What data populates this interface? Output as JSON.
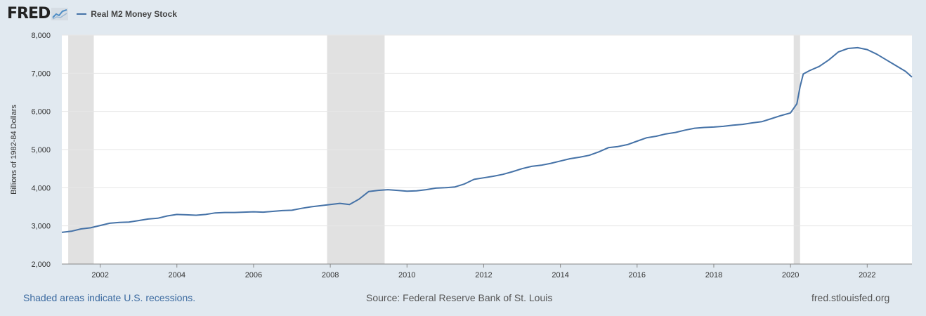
{
  "header": {
    "logo_text": "FRED",
    "legend_label": "Real M2 Money Stock"
  },
  "footer": {
    "recession_note": "Shaded areas indicate U.S. recessions.",
    "source": "Source: Federal Reserve Bank of St. Louis",
    "url": "fred.stlouisfed.org"
  },
  "colors": {
    "series": "#4572a7",
    "page_background": "#e1e9f0",
    "plot_background": "#ffffff",
    "recession_shade": "#e1e1e1",
    "grid": "#e6e6e6",
    "note_text": "#3b6aa0"
  },
  "chart_data": {
    "type": "line",
    "title": "",
    "xlabel": "",
    "ylabel": "Billions of 1982-84 Dollars",
    "ylim": [
      2000,
      8000
    ],
    "xlim": [
      "2001-01",
      "2023-03"
    ],
    "yticks": [
      2000,
      3000,
      4000,
      5000,
      6000,
      7000,
      8000
    ],
    "ytick_labels": [
      "2,000",
      "3,000",
      "4,000",
      "5,000",
      "6,000",
      "7,000",
      "8,000"
    ],
    "xticks": [
      "2002",
      "2004",
      "2006",
      "2008",
      "2010",
      "2012",
      "2014",
      "2016",
      "2018",
      "2020",
      "2022"
    ],
    "grid": "horizontal",
    "legend_position": "top-left",
    "recessions": [
      {
        "start": "2001-03",
        "end": "2001-11"
      },
      {
        "start": "2007-12",
        "end": "2009-06"
      },
      {
        "start": "2020-02",
        "end": "2020-04"
      }
    ],
    "series": [
      {
        "name": "Real M2 Money Stock",
        "points": [
          [
            "2001-01",
            2830
          ],
          [
            "2001-04",
            2860
          ],
          [
            "2001-07",
            2920
          ],
          [
            "2001-10",
            2950
          ],
          [
            "2002-01",
            3010
          ],
          [
            "2002-04",
            3070
          ],
          [
            "2002-07",
            3090
          ],
          [
            "2002-10",
            3100
          ],
          [
            "2003-01",
            3140
          ],
          [
            "2003-04",
            3180
          ],
          [
            "2003-07",
            3200
          ],
          [
            "2003-10",
            3260
          ],
          [
            "2004-01",
            3300
          ],
          [
            "2004-04",
            3290
          ],
          [
            "2004-07",
            3280
          ],
          [
            "2004-10",
            3300
          ],
          [
            "2005-01",
            3340
          ],
          [
            "2005-04",
            3350
          ],
          [
            "2005-07",
            3350
          ],
          [
            "2005-10",
            3360
          ],
          [
            "2006-01",
            3370
          ],
          [
            "2006-04",
            3360
          ],
          [
            "2006-07",
            3380
          ],
          [
            "2006-10",
            3400
          ],
          [
            "2007-01",
            3410
          ],
          [
            "2007-04",
            3460
          ],
          [
            "2007-07",
            3500
          ],
          [
            "2007-10",
            3530
          ],
          [
            "2008-01",
            3560
          ],
          [
            "2008-04",
            3590
          ],
          [
            "2008-07",
            3560
          ],
          [
            "2008-10",
            3700
          ],
          [
            "2009-01",
            3900
          ],
          [
            "2009-04",
            3930
          ],
          [
            "2009-07",
            3950
          ],
          [
            "2009-10",
            3930
          ],
          [
            "2010-01",
            3910
          ],
          [
            "2010-04",
            3920
          ],
          [
            "2010-07",
            3950
          ],
          [
            "2010-10",
            3990
          ],
          [
            "2011-01",
            4000
          ],
          [
            "2011-04",
            4020
          ],
          [
            "2011-07",
            4100
          ],
          [
            "2011-10",
            4220
          ],
          [
            "2012-01",
            4260
          ],
          [
            "2012-04",
            4300
          ],
          [
            "2012-07",
            4350
          ],
          [
            "2012-10",
            4420
          ],
          [
            "2013-01",
            4500
          ],
          [
            "2013-04",
            4560
          ],
          [
            "2013-07",
            4590
          ],
          [
            "2013-10",
            4640
          ],
          [
            "2014-01",
            4700
          ],
          [
            "2014-04",
            4760
          ],
          [
            "2014-07",
            4800
          ],
          [
            "2014-10",
            4850
          ],
          [
            "2015-01",
            4940
          ],
          [
            "2015-04",
            5050
          ],
          [
            "2015-07",
            5080
          ],
          [
            "2015-10",
            5130
          ],
          [
            "2016-01",
            5220
          ],
          [
            "2016-04",
            5310
          ],
          [
            "2016-07",
            5350
          ],
          [
            "2016-10",
            5410
          ],
          [
            "2017-01",
            5450
          ],
          [
            "2017-04",
            5510
          ],
          [
            "2017-07",
            5560
          ],
          [
            "2017-10",
            5580
          ],
          [
            "2018-01",
            5590
          ],
          [
            "2018-04",
            5610
          ],
          [
            "2018-07",
            5640
          ],
          [
            "2018-10",
            5660
          ],
          [
            "2019-01",
            5700
          ],
          [
            "2019-04",
            5730
          ],
          [
            "2019-07",
            5810
          ],
          [
            "2019-10",
            5890
          ],
          [
            "2020-01",
            5960
          ],
          [
            "2020-03",
            6200
          ],
          [
            "2020-04",
            6650
          ],
          [
            "2020-05",
            6980
          ],
          [
            "2020-07",
            7070
          ],
          [
            "2020-10",
            7180
          ],
          [
            "2021-01",
            7350
          ],
          [
            "2021-04",
            7560
          ],
          [
            "2021-07",
            7650
          ],
          [
            "2021-10",
            7670
          ],
          [
            "2022-01",
            7620
          ],
          [
            "2022-04",
            7500
          ],
          [
            "2022-07",
            7350
          ],
          [
            "2022-10",
            7200
          ],
          [
            "2023-01",
            7050
          ],
          [
            "2023-03",
            6900
          ]
        ]
      }
    ]
  }
}
